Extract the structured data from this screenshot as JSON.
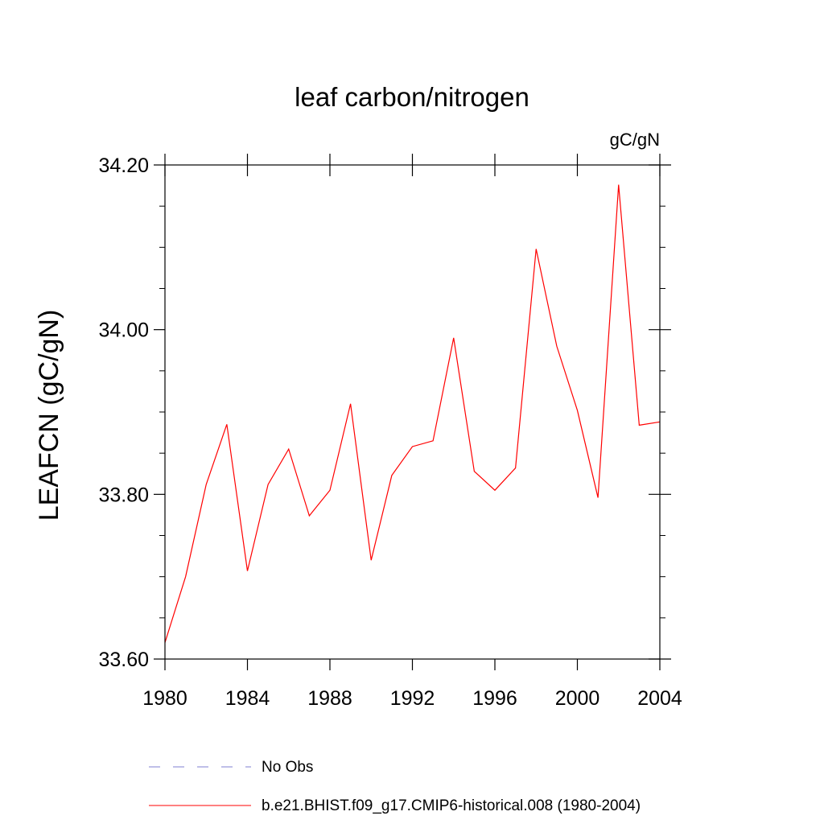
{
  "chart_data": {
    "type": "line",
    "title": "leaf carbon/nitrogen",
    "units": "gC/gN",
    "ylabel": "LEAFCN  (gC/gN)",
    "xlabel": "",
    "xlim": [
      1980,
      2004
    ],
    "ylim": [
      33.6,
      34.2
    ],
    "xticks": [
      1980,
      1984,
      1988,
      1992,
      1996,
      2000,
      2004
    ],
    "xtick_labels": [
      "1980",
      "1984",
      "1988",
      "1992",
      "1996",
      "2000",
      "2004"
    ],
    "yticks": [
      33.6,
      33.8,
      34.0,
      34.2
    ],
    "ytick_labels": [
      "33.60",
      "33.80",
      "34.00",
      "34.20"
    ],
    "ytick_minor_step": 0.05,
    "xtick_minor_step": 1,
    "grid": false,
    "legend_position": "bottom",
    "series": [
      {
        "name": "b.e21.BHIST.f09_g17.CMIP6-historical.008 (1980-2004)",
        "color": "#ff0000",
        "style": "solid",
        "x": [
          1980,
          1981,
          1982,
          1983,
          1984,
          1985,
          1986,
          1987,
          1988,
          1989,
          1990,
          1991,
          1992,
          1993,
          1994,
          1995,
          1996,
          1997,
          1998,
          1999,
          2000,
          2001,
          2002,
          2003,
          2004
        ],
        "values": [
          33.62,
          33.7,
          33.812,
          33.885,
          33.707,
          33.812,
          33.855,
          33.774,
          33.805,
          33.91,
          33.72,
          33.823,
          33.858,
          33.865,
          33.99,
          33.828,
          33.805,
          33.832,
          34.098,
          33.98,
          33.902,
          33.796,
          34.176,
          33.884,
          33.888
        ]
      },
      {
        "name": "No Obs",
        "color": "#7f7fd0",
        "style": "dashed",
        "x": [],
        "values": []
      }
    ]
  }
}
